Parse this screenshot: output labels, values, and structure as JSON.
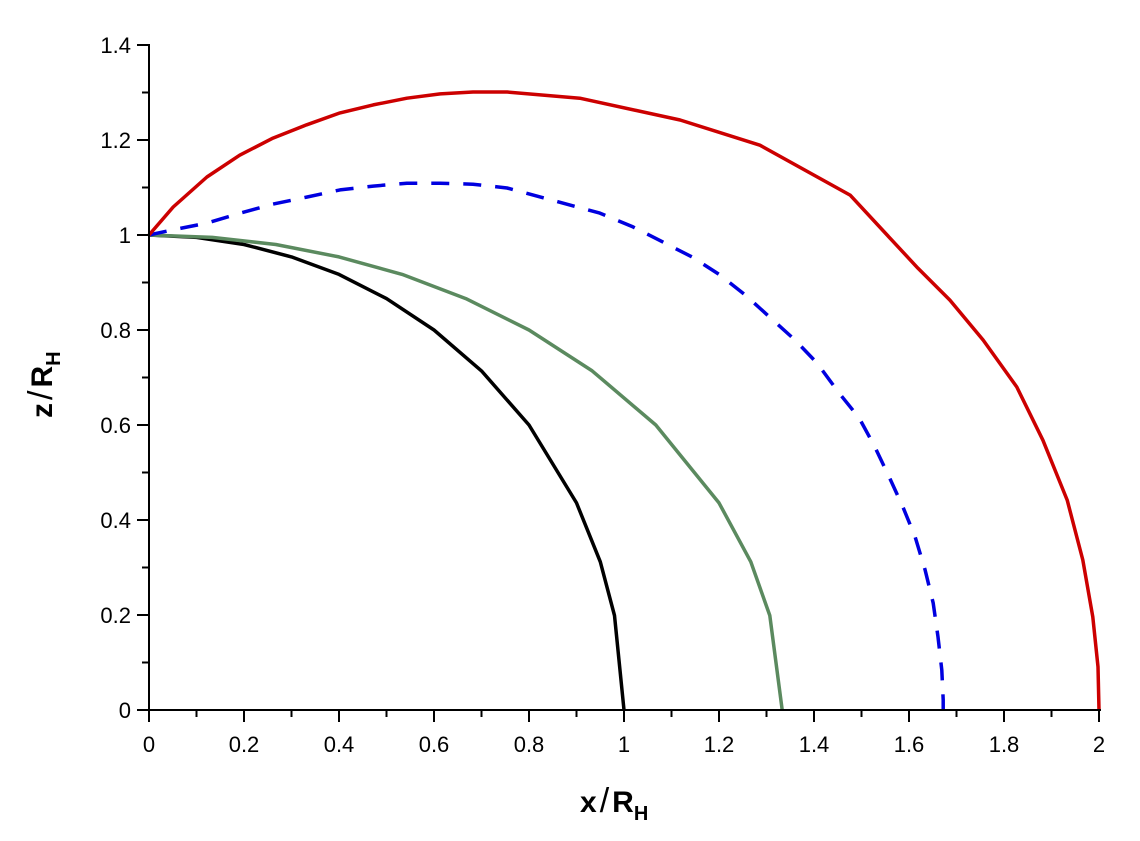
{
  "chart_data": {
    "type": "line",
    "title": "",
    "xlabel": "x/R_H",
    "ylabel": "z/R_H",
    "xlabel_parts": {
      "main": "x",
      "slash": "/",
      "R": "R",
      "sub": "H"
    },
    "ylabel_parts": {
      "main": "z",
      "slash": "/",
      "R": "R",
      "sub": "H"
    },
    "xlim": [
      0,
      2
    ],
    "ylim": [
      0,
      1.4
    ],
    "grid": false,
    "legend": "none",
    "x_ticks": [
      "0",
      "0.2",
      "0.4",
      "0.6",
      "0.8",
      "1",
      "1.2",
      "1.4",
      "1.6",
      "1.8",
      "2"
    ],
    "x_tick_values": [
      0,
      0.2,
      0.4,
      0.6,
      0.8,
      1.0,
      1.2,
      1.4,
      1.6,
      1.8,
      2.0
    ],
    "y_ticks": [
      "0",
      "0.2",
      "0.4",
      "0.6",
      "0.8",
      "1",
      "1.2",
      "1.4"
    ],
    "y_tick_values": [
      0,
      0.2,
      0.4,
      0.6,
      0.8,
      1.0,
      1.2,
      1.4
    ],
    "series": [
      {
        "name": "black-solid",
        "color": "#000000",
        "style": "solid",
        "x": [
          0,
          0.1,
          0.2,
          0.3,
          0.4,
          0.5,
          0.6,
          0.7,
          0.8,
          0.9,
          0.95,
          0.98,
          1.0
        ],
        "y": [
          1.0,
          0.995,
          0.98,
          0.954,
          0.917,
          0.866,
          0.8,
          0.714,
          0.6,
          0.436,
          0.312,
          0.199,
          0
        ]
      },
      {
        "name": "green-solid",
        "color": "#5b8a5f",
        "style": "solid",
        "x": [
          0,
          0.133,
          0.267,
          0.4,
          0.533,
          0.667,
          0.8,
          0.933,
          1.067,
          1.2,
          1.267,
          1.307,
          1.333
        ],
        "y": [
          1.0,
          0.995,
          0.98,
          0.954,
          0.917,
          0.866,
          0.8,
          0.714,
          0.6,
          0.436,
          0.312,
          0.199,
          0
        ]
      },
      {
        "name": "blue-dashed",
        "color": "#0000e0",
        "style": "dashed",
        "x": [
          0,
          0.051,
          0.122,
          0.192,
          0.261,
          0.333,
          0.402,
          0.472,
          0.543,
          0.613,
          0.682,
          0.754,
          0.949,
          1.019,
          1.082,
          1.143,
          1.202,
          1.255,
          1.307,
          1.36,
          1.406,
          1.453,
          1.495,
          1.528,
          1.558,
          1.587,
          1.613,
          1.634,
          1.651,
          1.661,
          1.669,
          1.672,
          1.672
        ],
        "y": [
          1.0,
          1.011,
          1.025,
          1.046,
          1.065,
          1.08,
          1.095,
          1.103,
          1.109,
          1.109,
          1.107,
          1.099,
          1.046,
          1.017,
          0.985,
          0.954,
          0.916,
          0.874,
          0.827,
          0.779,
          0.731,
          0.667,
          0.615,
          0.554,
          0.491,
          0.428,
          0.364,
          0.295,
          0.225,
          0.154,
          0.084,
          0.021,
          0
        ]
      },
      {
        "name": "red-solid",
        "color": "#cc0000",
        "style": "solid",
        "x": [
          0,
          0.051,
          0.122,
          0.191,
          0.261,
          0.332,
          0.402,
          0.472,
          0.543,
          0.613,
          0.682,
          0.754,
          0.907,
          1.118,
          1.286,
          1.476,
          1.619,
          1.686,
          1.756,
          1.827,
          1.882,
          1.933,
          1.966,
          1.987,
          1.998,
          2.0
        ],
        "y": [
          1.0,
          1.059,
          1.122,
          1.168,
          1.204,
          1.232,
          1.257,
          1.274,
          1.288,
          1.297,
          1.301,
          1.301,
          1.288,
          1.242,
          1.189,
          1.084,
          0.93,
          0.863,
          0.779,
          0.68,
          0.568,
          0.442,
          0.316,
          0.196,
          0.091,
          0
        ]
      }
    ]
  }
}
